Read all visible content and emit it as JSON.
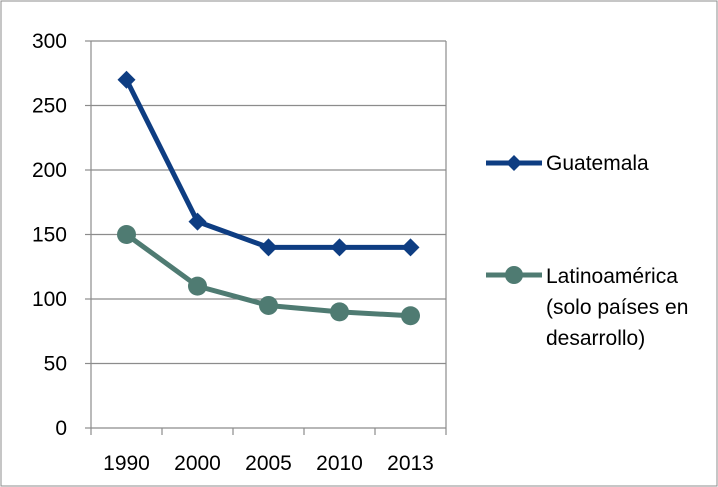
{
  "chart_data": {
    "type": "line",
    "categories": [
      "1990",
      "2000",
      "2005",
      "2010",
      "2013"
    ],
    "series": [
      {
        "name": "Guatemala",
        "values": [
          270,
          160,
          140,
          140,
          140
        ],
        "color": "#0E3D82",
        "marker": "diamond"
      },
      {
        "name": "Latinoamérica (solo países en desarrollo)",
        "name_lines": [
          "Latinoamérica",
          "(solo países en",
          "desarrollo)"
        ],
        "values": [
          150,
          110,
          95,
          90,
          87
        ],
        "color": "#4F7B72",
        "marker": "circle"
      }
    ],
    "y_ticks": [
      "0",
      "50",
      "100",
      "150",
      "200",
      "250",
      "300"
    ],
    "ylim": [
      0,
      300
    ],
    "grid": true,
    "legend_position": "right",
    "title": "",
    "xlabel": "",
    "ylabel": ""
  }
}
